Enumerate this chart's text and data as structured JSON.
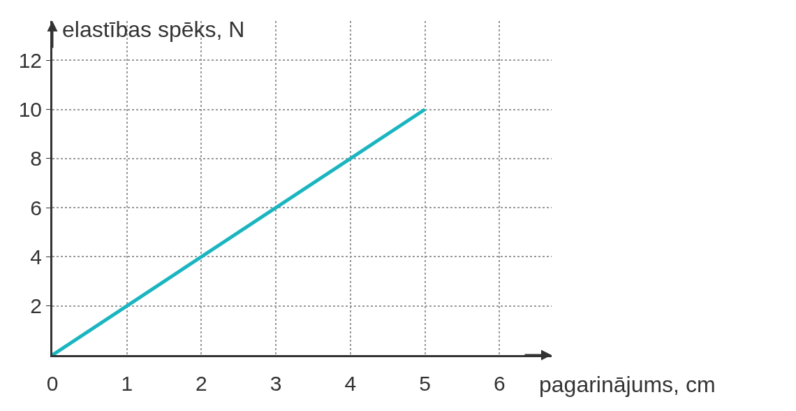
{
  "chart_data": {
    "type": "line",
    "xlabel": "pagarinājums, cm",
    "ylabel": "elastības spēks, N",
    "x": [
      0,
      5
    ],
    "series": [
      {
        "color": "#1ab5c0",
        "values": [
          0,
          10
        ]
      }
    ],
    "xlim": [
      0,
      6.7
    ],
    "ylim": [
      0,
      13.6
    ],
    "xticks": [
      0,
      1,
      2,
      3,
      4,
      5,
      6
    ],
    "yticks": [
      2,
      4,
      6,
      8,
      10,
      12
    ],
    "grid": true,
    "marker": "none",
    "line_style": "solid",
    "legend": false
  }
}
